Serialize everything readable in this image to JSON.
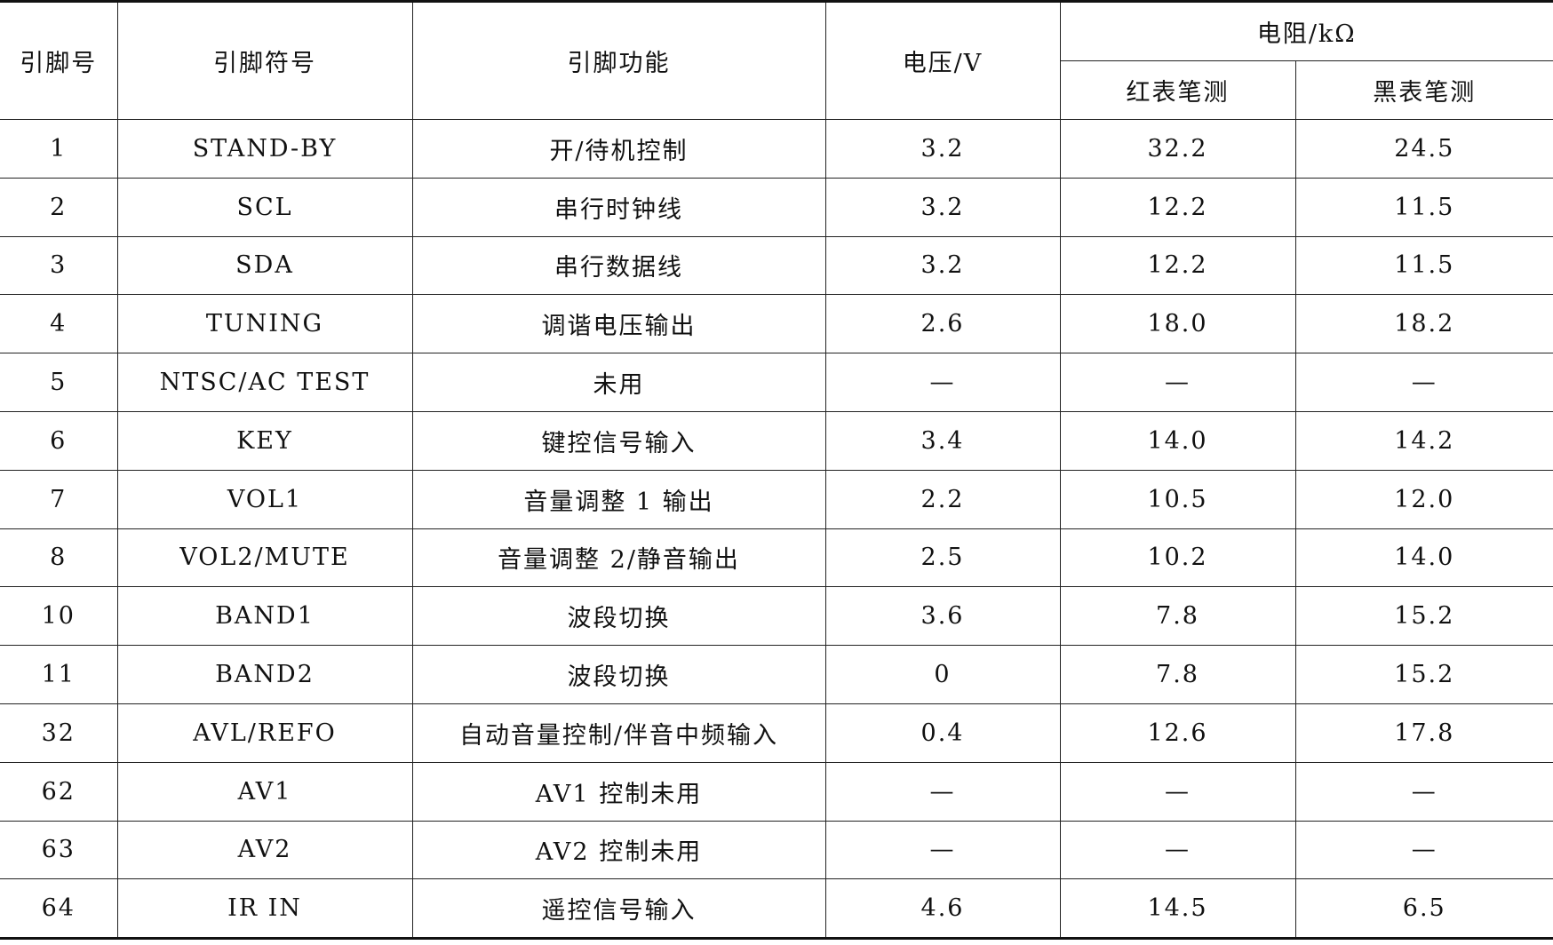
{
  "headers": {
    "pin_no": "引脚号",
    "pin_symbol": "引脚符号",
    "pin_function": "引脚功能",
    "voltage": "电压/V",
    "resistance": "电阻/kΩ",
    "red_probe": "红表笔测",
    "black_probe": "黑表笔测"
  },
  "rows": [
    {
      "pin": "1",
      "symbol": "STAND-BY",
      "function": "开/待机控制",
      "voltage": "3.2",
      "red": "32.2",
      "black": "24.5"
    },
    {
      "pin": "2",
      "symbol": "SCL",
      "function": "串行时钟线",
      "voltage": "3.2",
      "red": "12.2",
      "black": "11.5"
    },
    {
      "pin": "3",
      "symbol": "SDA",
      "function": "串行数据线",
      "voltage": "3.2",
      "red": "12.2",
      "black": "11.5"
    },
    {
      "pin": "4",
      "symbol": "TUNING",
      "function": "调谐电压输出",
      "voltage": "2.6",
      "red": "18.0",
      "black": "18.2"
    },
    {
      "pin": "5",
      "symbol": "NTSC/AC TEST",
      "function": "未用",
      "voltage": "—",
      "red": "—",
      "black": "—"
    },
    {
      "pin": "6",
      "symbol": "KEY",
      "function": "键控信号输入",
      "voltage": "3.4",
      "red": "14.0",
      "black": "14.2"
    },
    {
      "pin": "7",
      "symbol": "VOL1",
      "function": "音量调整 1 输出",
      "voltage": "2.2",
      "red": "10.5",
      "black": "12.0"
    },
    {
      "pin": "8",
      "symbol": "VOL2/MUTE",
      "function": "音量调整 2/静音输出",
      "voltage": "2.5",
      "red": "10.2",
      "black": "14.0"
    },
    {
      "pin": "10",
      "symbol": "BAND1",
      "function": "波段切换",
      "voltage": "3.6",
      "red": "7.8",
      "black": "15.2"
    },
    {
      "pin": "11",
      "symbol": "BAND2",
      "function": "波段切换",
      "voltage": "0",
      "red": "7.8",
      "black": "15.2"
    },
    {
      "pin": "32",
      "symbol": "AVL/REFO",
      "function": "自动音量控制/伴音中频输入",
      "voltage": "0.4",
      "red": "12.6",
      "black": "17.8"
    },
    {
      "pin": "62",
      "symbol": "AV1",
      "function": "AV1 控制未用",
      "voltage": "—",
      "red": "—",
      "black": "—"
    },
    {
      "pin": "63",
      "symbol": "AV2",
      "function": "AV2 控制未用",
      "voltage": "—",
      "red": "—",
      "black": "—"
    },
    {
      "pin": "64",
      "symbol": "IR IN",
      "function": "遥控信号输入",
      "voltage": "4.6",
      "red": "14.5",
      "black": "6.5"
    }
  ]
}
